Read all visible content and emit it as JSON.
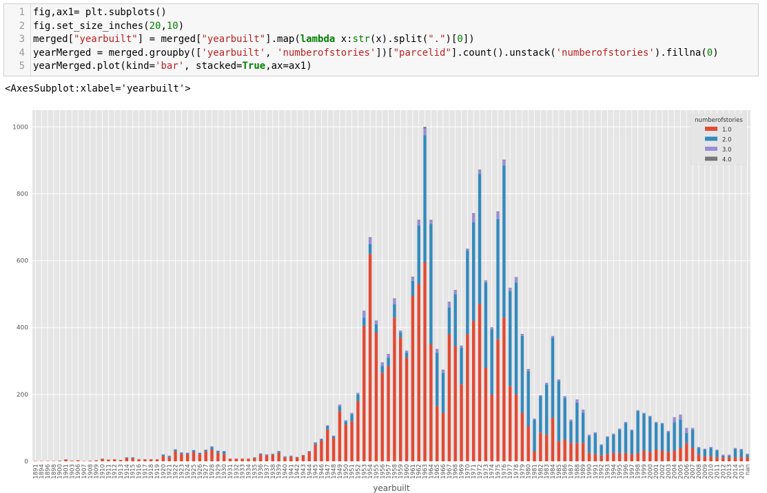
{
  "cell": {
    "line_numbers": [
      "1",
      "2",
      "3",
      "4",
      "5"
    ],
    "code": [
      [
        {
          "t": "fig,ax1= plt.subplots()",
          "c": ""
        }
      ],
      [
        {
          "t": "fig.set_size_inches(",
          "c": ""
        },
        {
          "t": "20",
          "c": "num"
        },
        {
          "t": ",",
          "c": ""
        },
        {
          "t": "10",
          "c": "num"
        },
        {
          "t": ")",
          "c": ""
        }
      ],
      [
        {
          "t": "merged[",
          "c": ""
        },
        {
          "t": "\"yearbuilt\"",
          "c": "str"
        },
        {
          "t": "] = merged[",
          "c": ""
        },
        {
          "t": "\"yearbuilt\"",
          "c": "str"
        },
        {
          "t": "].map(",
          "c": ""
        },
        {
          "t": "lambda",
          "c": "kw"
        },
        {
          "t": " x:",
          "c": ""
        },
        {
          "t": "str",
          "c": "num"
        },
        {
          "t": "(x).split(",
          "c": ""
        },
        {
          "t": "\".\"",
          "c": "str"
        },
        {
          "t": ")[",
          "c": ""
        },
        {
          "t": "0",
          "c": "num"
        },
        {
          "t": "])",
          "c": ""
        }
      ],
      [
        {
          "t": "yearMerged = merged.groupby([",
          "c": ""
        },
        {
          "t": "'yearbuilt'",
          "c": "str"
        },
        {
          "t": ", ",
          "c": ""
        },
        {
          "t": "'numberofstories'",
          "c": "str"
        },
        {
          "t": "])[",
          "c": ""
        },
        {
          "t": "\"parcelid\"",
          "c": "str"
        },
        {
          "t": "].count().unstack(",
          "c": ""
        },
        {
          "t": "'numberofstories'",
          "c": "str"
        },
        {
          "t": ").fillna(",
          "c": ""
        },
        {
          "t": "0",
          "c": "num"
        },
        {
          "t": ")",
          "c": ""
        }
      ],
      [
        {
          "t": "yearMerged.plot(kind=",
          "c": ""
        },
        {
          "t": "'bar'",
          "c": "str"
        },
        {
          "t": ", stacked=",
          "c": ""
        },
        {
          "t": "True",
          "c": "kw"
        },
        {
          "t": ",ax=ax1)",
          "c": ""
        }
      ]
    ]
  },
  "output_text": "<AxesSubplot:xlabel='yearbuilt'>",
  "chart_data": {
    "type": "bar",
    "stacked": true,
    "xlabel": "yearbuilt",
    "ylabel": "",
    "ylim": [
      0,
      1050
    ],
    "yticks": [
      0,
      200,
      400,
      600,
      800,
      1000
    ],
    "grid": true,
    "legend_title": "numberofstories",
    "legend_position": "top-right",
    "categories": [
      "1891",
      "1894",
      "1896",
      "1898",
      "1900",
      "1901",
      "1903",
      "1906",
      "1907",
      "1908",
      "1909",
      "1910",
      "1911",
      "1912",
      "1913",
      "1914",
      "1915",
      "1916",
      "1917",
      "1918",
      "1919",
      "1920",
      "1921",
      "1922",
      "1923",
      "1924",
      "1925",
      "1926",
      "1927",
      "1928",
      "1929",
      "1930",
      "1931",
      "1932",
      "1933",
      "1934",
      "1935",
      "1936",
      "1937",
      "1938",
      "1939",
      "1940",
      "1941",
      "1942",
      "1943",
      "1944",
      "1945",
      "1946",
      "1947",
      "1948",
      "1949",
      "1950",
      "1951",
      "1952",
      "1953",
      "1954",
      "1955",
      "1956",
      "1957",
      "1958",
      "1959",
      "1960",
      "1961",
      "1962",
      "1963",
      "1964",
      "1965",
      "1966",
      "1967",
      "1968",
      "1969",
      "1970",
      "1971",
      "1972",
      "1973",
      "1974",
      "1975",
      "1976",
      "1977",
      "1978",
      "1979",
      "1980",
      "1981",
      "1982",
      "1983",
      "1984",
      "1985",
      "1986",
      "1987",
      "1988",
      "1989",
      "1990",
      "1991",
      "1992",
      "1993",
      "1994",
      "1995",
      "1996",
      "1997",
      "1998",
      "1999",
      "2000",
      "2001",
      "2002",
      "2003",
      "2004",
      "2005",
      "2006",
      "2007",
      "2008",
      "2009",
      "2010",
      "2011",
      "2012",
      "2013",
      "2014",
      "2015",
      "nan"
    ],
    "series": [
      {
        "name": "1.0",
        "color": "#e24a33",
        "values": [
          1,
          1,
          1,
          1,
          2,
          5,
          2,
          3,
          1,
          2,
          3,
          8,
          5,
          6,
          4,
          10,
          10,
          6,
          6,
          6,
          6,
          16,
          12,
          30,
          22,
          22,
          28,
          22,
          30,
          35,
          25,
          22,
          8,
          8,
          8,
          8,
          10,
          20,
          18,
          20,
          25,
          12,
          14,
          12,
          18,
          28,
          50,
          62,
          95,
          70,
          150,
          110,
          120,
          180,
          405,
          620,
          385,
          265,
          285,
          430,
          370,
          310,
          495,
          530,
          595,
          350,
          165,
          145,
          380,
          345,
          230,
          380,
          420,
          470,
          280,
          200,
          365,
          430,
          225,
          200,
          145,
          105,
          30,
          85,
          80,
          130,
          60,
          65,
          55,
          55,
          55,
          25,
          22,
          18,
          22,
          25,
          25,
          25,
          22,
          25,
          32,
          28,
          35,
          32,
          28,
          32,
          40,
          55,
          40,
          20,
          15,
          15,
          12,
          12,
          12,
          12,
          12,
          12
        ]
      },
      {
        "name": "2.0",
        "color": "#348abd",
        "values": [
          0,
          0,
          0,
          0,
          0,
          1,
          0,
          0,
          0,
          0,
          0,
          0,
          0,
          0,
          0,
          2,
          2,
          0,
          0,
          0,
          0,
          4,
          4,
          5,
          4,
          3,
          5,
          3,
          4,
          8,
          6,
          8,
          0,
          0,
          0,
          0,
          2,
          3,
          2,
          2,
          5,
          2,
          2,
          1,
          1,
          2,
          5,
          4,
          10,
          5,
          15,
          10,
          20,
          20,
          25,
          30,
          25,
          20,
          25,
          40,
          15,
          15,
          45,
          175,
          380,
          360,
          160,
          120,
          80,
          155,
          110,
          250,
          295,
          390,
          255,
          195,
          360,
          455,
          285,
          335,
          230,
          165,
          95,
          110,
          150,
          240,
          180,
          125,
          65,
          120,
          90,
          50,
          62,
          30,
          50,
          55,
          70,
          90,
          70,
          125,
          110,
          105,
          80,
          80,
          60,
          85,
          85,
          30,
          55,
          20,
          20,
          25,
          20,
          5,
          5,
          25,
          22,
          8
        ]
      },
      {
        "name": "3.0",
        "color": "#988ed5",
        "values": [
          0,
          0,
          0,
          0,
          0,
          0,
          0,
          0,
          0,
          0,
          0,
          0,
          0,
          0,
          0,
          0,
          0,
          0,
          0,
          0,
          0,
          1,
          1,
          1,
          1,
          1,
          1,
          1,
          1,
          2,
          1,
          1,
          0,
          0,
          0,
          0,
          0,
          1,
          1,
          1,
          1,
          1,
          1,
          0,
          0,
          1,
          2,
          2,
          3,
          2,
          5,
          3,
          5,
          5,
          18,
          18,
          10,
          10,
          10,
          15,
          5,
          5,
          10,
          15,
          20,
          10,
          10,
          8,
          15,
          10,
          5,
          5,
          25,
          10,
          5,
          5,
          20,
          15,
          8,
          15,
          5,
          5,
          3,
          3,
          5,
          5,
          5,
          5,
          5,
          10,
          10,
          5,
          3,
          3,
          3,
          3,
          3,
          3,
          3,
          3,
          3,
          3,
          3,
          3,
          3,
          15,
          15,
          15,
          5,
          3,
          3,
          3,
          3,
          3,
          3,
          3,
          3,
          3
        ]
      },
      {
        "name": "4.0",
        "color": "#777777",
        "values": [
          0,
          0,
          0,
          0,
          0,
          0,
          0,
          0,
          0,
          0,
          0,
          0,
          0,
          0,
          0,
          0,
          0,
          0,
          0,
          0,
          0,
          0,
          0,
          0,
          0,
          0,
          0,
          0,
          0,
          0,
          0,
          0,
          0,
          0,
          0,
          0,
          0,
          0,
          0,
          0,
          0,
          0,
          0,
          0,
          0,
          0,
          0,
          0,
          0,
          0,
          0,
          0,
          0,
          0,
          2,
          2,
          1,
          1,
          1,
          2,
          1,
          1,
          2,
          2,
          5,
          2,
          1,
          1,
          2,
          2,
          1,
          1,
          2,
          2,
          1,
          1,
          2,
          2,
          1,
          1,
          1,
          1,
          0,
          0,
          0,
          0,
          0,
          0,
          0,
          0,
          0,
          0,
          0,
          0,
          0,
          0,
          0,
          0,
          0,
          0,
          0,
          0,
          0,
          0,
          0,
          0,
          0,
          0,
          0,
          0,
          0,
          0,
          0,
          0,
          0,
          0,
          0,
          0
        ]
      }
    ]
  }
}
